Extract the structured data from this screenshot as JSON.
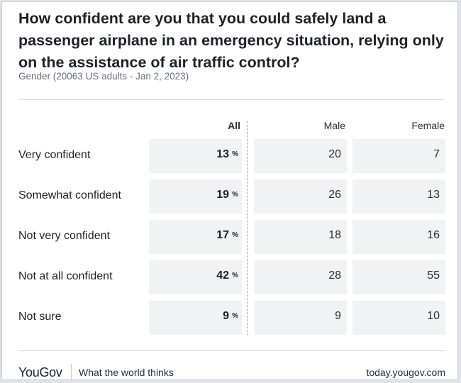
{
  "chart_data": {
    "type": "table",
    "title": "How confident are you that you could safely land a passenger airplane in an emergency situation, relying only on the assistance of air traffic control?",
    "subtitle": "Gender (20063 US adults - Jan 2, 2023)",
    "columns": [
      "All",
      "Male",
      "Female"
    ],
    "percent_sign": "%",
    "rows": [
      {
        "label": "Very confident",
        "all": 13,
        "male": 20,
        "female": 7
      },
      {
        "label": "Somewhat confident",
        "all": 19,
        "male": 26,
        "female": 13
      },
      {
        "label": "Not very confident",
        "all": 17,
        "male": 18,
        "female": 16
      },
      {
        "label": "Not at all confident",
        "all": 42,
        "male": 28,
        "female": 55
      },
      {
        "label": "Not sure",
        "all": 9,
        "male": 9,
        "female": 10
      }
    ]
  },
  "footer": {
    "brand": "YouGov",
    "tagline": "What the world thinks",
    "site": "today.yougov.com"
  },
  "colors": {
    "cell_bg": "#f1f2f4",
    "text": "#1e2228",
    "muted": "#6b7079"
  }
}
